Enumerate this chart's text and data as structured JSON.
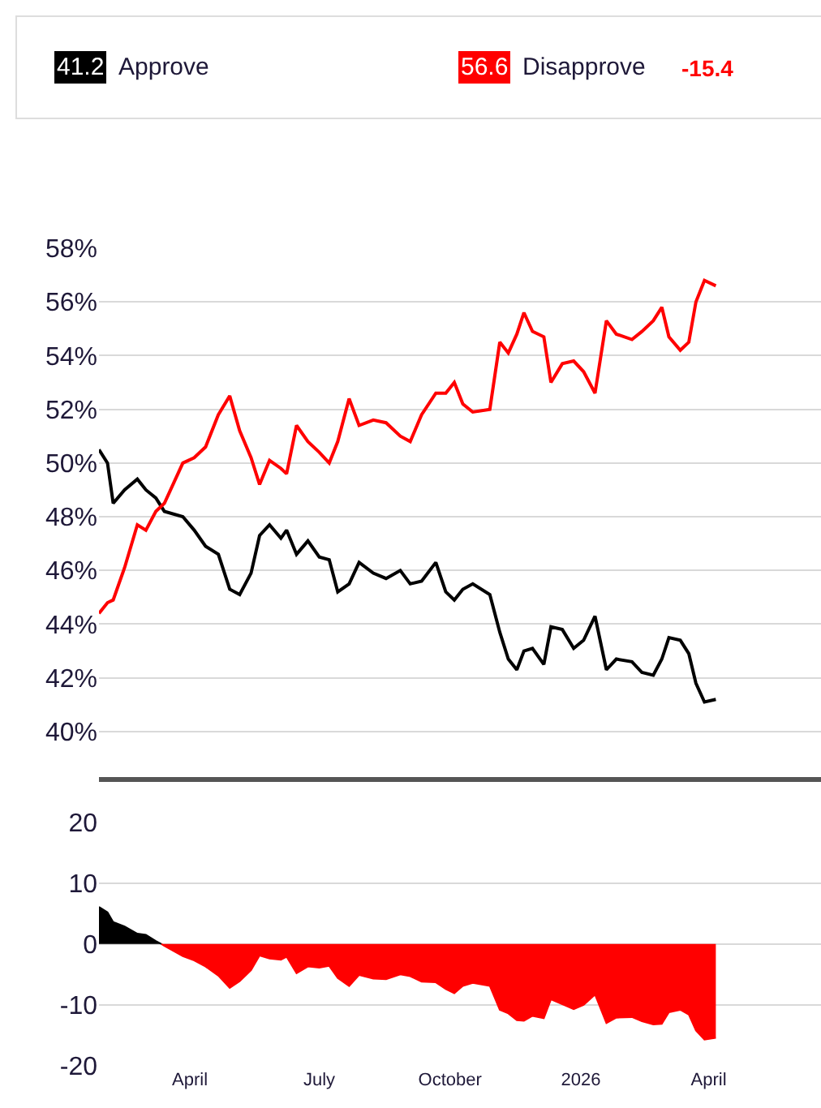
{
  "chart_data": [
    {
      "type": "line",
      "legend": "top",
      "grid": "y",
      "tick_labels": "y",
      "x": [
        "2025-01-27",
        "2025-02-02",
        "2025-02-06",
        "2025-02-14",
        "2025-02-23",
        "2025-03-01",
        "2025-03-08",
        "2025-03-14",
        "2025-03-27",
        "2025-04-04",
        "2025-04-12",
        "2025-04-21",
        "2025-04-29",
        "2025-05-06",
        "2025-05-14",
        "2025-05-20",
        "2025-05-27",
        "2025-06-04",
        "2025-06-08",
        "2025-06-15",
        "2025-06-23",
        "2025-07-01",
        "2025-07-08",
        "2025-07-14",
        "2025-07-22",
        "2025-07-29",
        "2025-08-08",
        "2025-08-17",
        "2025-08-27",
        "2025-09-03",
        "2025-09-11",
        "2025-09-21",
        "2025-09-28",
        "2025-10-04",
        "2025-10-10",
        "2025-10-17",
        "2025-10-29",
        "2025-11-05",
        "2025-11-11",
        "2025-11-17",
        "2025-11-22",
        "2025-11-28",
        "2025-12-06",
        "2025-12-11",
        "2025-12-19",
        "2025-12-27",
        "2026-01-03",
        "2026-01-11",
        "2026-01-19",
        "2026-01-26",
        "2026-02-06",
        "2026-02-13",
        "2026-02-21",
        "2026-02-27",
        "2026-03-04",
        "2026-03-12",
        "2026-03-18",
        "2026-03-23",
        "2026-03-29",
        "2026-04-06"
      ],
      "series": [
        {
          "name": "Approve",
          "color": "#000000",
          "values": [
            50.5,
            50.0,
            48.5,
            49.0,
            49.4,
            49.0,
            48.7,
            48.2,
            48.0,
            47.5,
            46.9,
            46.6,
            45.3,
            45.1,
            45.9,
            47.3,
            47.7,
            47.2,
            47.5,
            46.6,
            47.1,
            46.5,
            46.4,
            45.2,
            45.5,
            46.3,
            45.9,
            45.7,
            46.0,
            45.5,
            45.6,
            46.3,
            45.2,
            44.9,
            45.3,
            45.5,
            45.1,
            43.7,
            42.7,
            42.3,
            43.0,
            43.1,
            42.5,
            43.9,
            43.8,
            43.1,
            43.4,
            44.3,
            42.3,
            42.7,
            42.6,
            42.2,
            42.1,
            42.7,
            43.5,
            43.4,
            42.9,
            41.8,
            41.1,
            41.2
          ]
        },
        {
          "name": "Disapprove",
          "color": "#ff0000",
          "values": [
            44.4,
            44.8,
            44.9,
            46.1,
            47.7,
            47.5,
            48.2,
            48.5,
            50.0,
            50.2,
            50.6,
            51.8,
            52.5,
            51.2,
            50.2,
            49.2,
            50.1,
            49.8,
            49.6,
            51.4,
            50.8,
            50.4,
            50.0,
            50.8,
            52.4,
            51.4,
            51.6,
            51.5,
            51.0,
            50.8,
            51.8,
            52.6,
            52.6,
            53.0,
            52.2,
            51.9,
            52.0,
            54.5,
            54.1,
            54.8,
            55.6,
            54.9,
            54.7,
            53.0,
            53.7,
            53.8,
            53.4,
            52.6,
            55.3,
            54.8,
            54.6,
            54.9,
            55.3,
            55.8,
            54.7,
            54.2,
            54.5,
            56.0,
            56.8,
            56.6
          ]
        }
      ],
      "annotations": [
        "41.2",
        "56.6",
        "-15.4"
      ],
      "ylim": [
        38.3,
        58
      ],
      "yticks": [
        {
          "value": 58,
          "label": "58%"
        },
        {
          "value": 56,
          "label": "56%"
        },
        {
          "value": 54,
          "label": "54%"
        },
        {
          "value": 52,
          "label": "52%"
        },
        {
          "value": 50,
          "label": "50%"
        },
        {
          "value": 48,
          "label": "48%"
        },
        {
          "value": 46,
          "label": "46%"
        },
        {
          "value": 44,
          "label": "44%"
        },
        {
          "value": 42,
          "label": "42%"
        },
        {
          "value": 40,
          "label": "40%"
        }
      ],
      "xlim": [
        "2025-01-27",
        "2026-06-19"
      ]
    },
    {
      "type": "area",
      "grid": "y",
      "series": [
        {
          "color": "#000000",
          "x": [
            "2025-01-27",
            "2025-02-02",
            "2025-02-06",
            "2025-02-14",
            "2025-02-23",
            "2025-03-01",
            "2025-03-08",
            "2025-03-12"
          ],
          "values": [
            6.1,
            5.2,
            3.6,
            2.9,
            1.7,
            1.5,
            0.5,
            0
          ]
        },
        {
          "color": "#ff0000",
          "x": [
            "2025-03-12",
            "2025-03-14",
            "2025-03-27",
            "2025-04-04",
            "2025-04-12",
            "2025-04-21",
            "2025-04-29",
            "2025-05-06",
            "2025-05-14",
            "2025-05-20",
            "2025-05-27",
            "2025-06-04",
            "2025-06-08",
            "2025-06-15",
            "2025-06-23",
            "2025-07-01",
            "2025-07-08",
            "2025-07-14",
            "2025-07-22",
            "2025-07-29",
            "2025-08-08",
            "2025-08-17",
            "2025-08-27",
            "2025-09-03",
            "2025-09-11",
            "2025-09-21",
            "2025-09-28",
            "2025-10-04",
            "2025-10-10",
            "2025-10-17",
            "2025-10-29",
            "2025-11-05",
            "2025-11-11",
            "2025-11-17",
            "2025-11-22",
            "2025-11-28",
            "2025-12-06",
            "2025-12-11",
            "2025-12-19",
            "2025-12-27",
            "2026-01-03",
            "2026-01-11",
            "2026-01-19",
            "2026-01-26",
            "2026-02-06",
            "2026-02-13",
            "2026-02-21",
            "2026-02-27",
            "2026-03-04",
            "2026-03-12",
            "2026-03-18",
            "2026-03-23",
            "2026-03-29",
            "2026-04-06"
          ],
          "values": [
            0,
            -0.3,
            -2.0,
            -2.7,
            -3.7,
            -5.2,
            -7.2,
            -6.1,
            -4.3,
            -1.9,
            -2.4,
            -2.6,
            -2.1,
            -4.8,
            -3.7,
            -3.9,
            -3.6,
            -5.6,
            -6.9,
            -5.1,
            -5.7,
            -5.8,
            -5.0,
            -5.3,
            -6.2,
            -6.3,
            -7.4,
            -8.1,
            -6.9,
            -6.4,
            -6.9,
            -10.8,
            -11.4,
            -12.5,
            -12.6,
            -11.8,
            -12.2,
            -9.1,
            -9.9,
            -10.7,
            -10.0,
            -8.3,
            -13.0,
            -12.1,
            -12.0,
            -12.7,
            -13.2,
            -13.1,
            -11.2,
            -10.8,
            -11.6,
            -14.2,
            -15.7,
            -15.4
          ]
        }
      ],
      "ylim": [
        -20,
        20
      ],
      "yticks": [
        20,
        10,
        0,
        -10,
        -20
      ],
      "xlim": [
        "2025-01-27",
        "2026-06-19"
      ],
      "xticks": [
        {
          "value": "2025-04-01",
          "label": "April"
        },
        {
          "value": "2025-07-01",
          "label": "July"
        },
        {
          "value": "2025-10-01",
          "label": "October"
        },
        {
          "value": "2026-01-01",
          "label": "2026"
        },
        {
          "value": "2026-04-01",
          "label": "April"
        }
      ]
    }
  ]
}
